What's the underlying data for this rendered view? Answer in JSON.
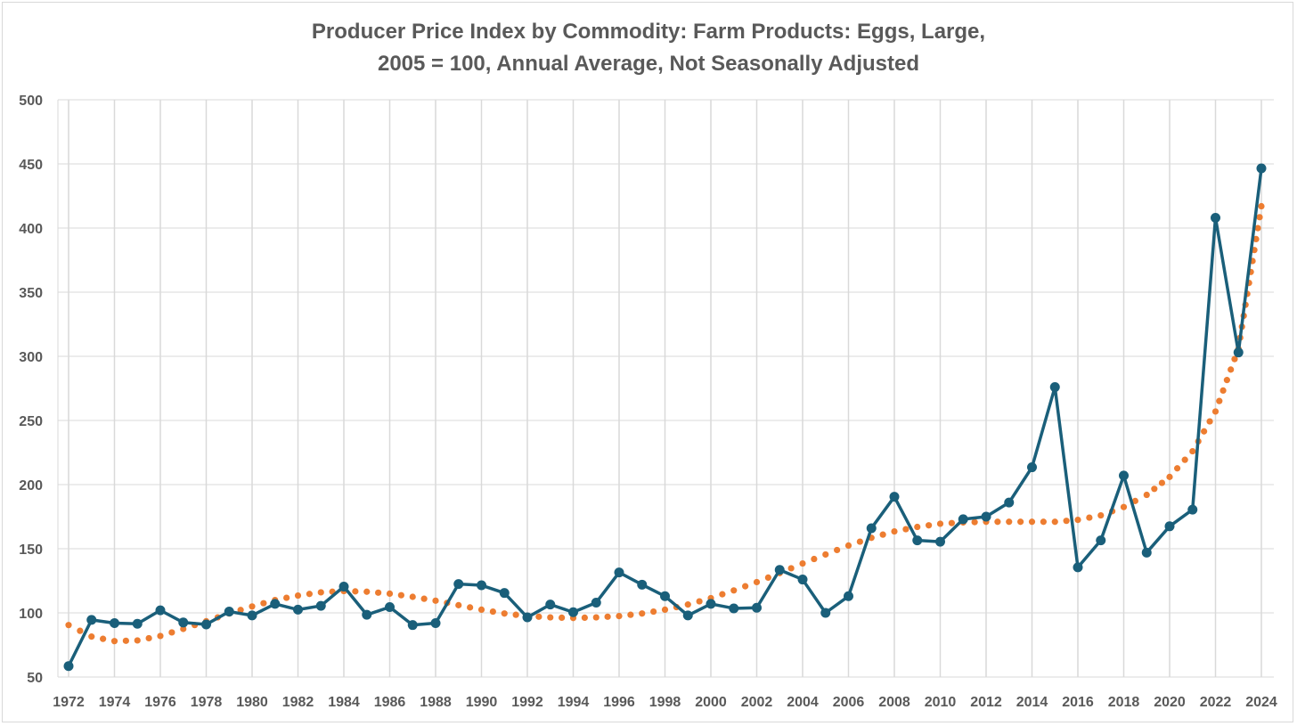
{
  "chart_data": {
    "type": "line",
    "title_lines": [
      "Producer Price Index by Commodity: Farm Products: Eggs, Large,",
      "2005 = 100, Annual Average, Not Seasonally Adjusted"
    ],
    "xlabel": "",
    "ylabel": "",
    "ylim": [
      50,
      500
    ],
    "y_ticks": [
      50,
      100,
      150,
      200,
      250,
      300,
      350,
      400,
      450,
      500
    ],
    "x_ticks": [
      1972,
      1974,
      1976,
      1978,
      1980,
      1982,
      1984,
      1986,
      1988,
      1990,
      1992,
      1994,
      1996,
      1998,
      2000,
      2002,
      2004,
      2006,
      2008,
      2010,
      2012,
      2014,
      2016,
      2018,
      2020,
      2022,
      2024
    ],
    "grid": true,
    "legend": "none",
    "series": [
      {
        "kind": "data",
        "color": "#1a5f7a",
        "marker": "circle",
        "x": [
          1972,
          1973,
          1974,
          1975,
          1976,
          1977,
          1978,
          1979,
          1980,
          1981,
          1982,
          1983,
          1984,
          1985,
          1986,
          1987,
          1988,
          1989,
          1990,
          1991,
          1992,
          1993,
          1994,
          1995,
          1996,
          1997,
          1998,
          1999,
          2000,
          2001,
          2002,
          2003,
          2004,
          2005,
          2006,
          2007,
          2008,
          2009,
          2010,
          2011,
          2012,
          2013,
          2014,
          2015,
          2016,
          2017,
          2018,
          2019,
          2020,
          2021,
          2022,
          2023,
          2024
        ],
        "values": [
          58.5,
          94.5,
          92,
          91.5,
          102,
          92.5,
          91,
          101,
          98,
          107,
          102.5,
          105.5,
          120.5,
          98.5,
          104.5,
          90.5,
          92,
          122.5,
          121.5,
          115.5,
          96.5,
          106.5,
          100.5,
          108,
          131.5,
          122,
          113,
          98,
          107,
          103.5,
          104,
          133.5,
          126,
          100,
          113,
          166,
          190.5,
          156.5,
          155.5,
          173,
          175,
          186,
          213.5,
          276,
          135.5,
          156.5,
          207,
          147,
          167.5,
          180.5,
          408,
          303,
          446.5
        ]
      },
      {
        "kind": "trendline",
        "color": "#ed7d31",
        "style": "dotted",
        "x": [
          1972,
          1973,
          1974,
          1975,
          1976,
          1977,
          1978,
          1979,
          1980,
          1981,
          1982,
          1983,
          1984,
          1985,
          1986,
          1987,
          1988,
          1989,
          1990,
          1991,
          1992,
          1993,
          1994,
          1995,
          1996,
          1997,
          1998,
          1999,
          2000,
          2001,
          2002,
          2003,
          2004,
          2005,
          2006,
          2007,
          2008,
          2009,
          2010,
          2011,
          2012,
          2013,
          2014,
          2015,
          2016,
          2017,
          2018,
          2019,
          2020,
          2021,
          2022,
          2023,
          2024
        ],
        "values": [
          90.5,
          81.5,
          78,
          78.5,
          82,
          87.5,
          93.5,
          99.5,
          105,
          110,
          113.5,
          116,
          117,
          116.5,
          115,
          112.5,
          109.5,
          106,
          102.5,
          99.5,
          97.5,
          96.5,
          96,
          96.5,
          97.5,
          99.5,
          102.5,
          106.5,
          111.5,
          117.5,
          124,
          131,
          138.5,
          145.5,
          152.5,
          158.5,
          163.5,
          167,
          169.5,
          170.5,
          171,
          171,
          171,
          171,
          172.5,
          176,
          182.5,
          192,
          206,
          226,
          257,
          306,
          417
        ]
      }
    ]
  }
}
